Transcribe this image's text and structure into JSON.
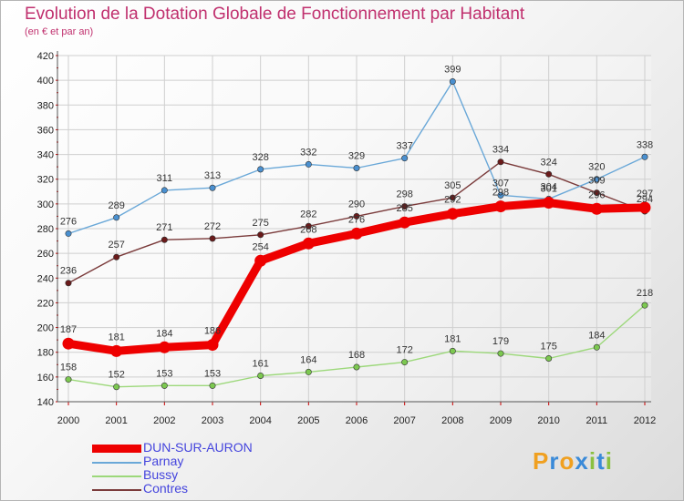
{
  "chart_data": {
    "type": "line",
    "title": "Evolution de la Dotation Globale de Fonctionnement par Habitant",
    "subtitle": "(en € et par an)",
    "xlabel": "",
    "ylabel": "",
    "categories": [
      "2000",
      "2001",
      "2002",
      "2003",
      "2004",
      "2005",
      "2006",
      "2007",
      "2008",
      "2009",
      "2010",
      "2011",
      "2012"
    ],
    "ylim": [
      140,
      420
    ],
    "yticks": [
      140,
      160,
      180,
      200,
      220,
      240,
      260,
      280,
      300,
      320,
      340,
      360,
      380,
      400,
      420
    ],
    "grid": true,
    "legend_position": "bottom-left",
    "series": [
      {
        "name": "DUN-SUR-AURON",
        "color": "#ee0000",
        "point_color": "#ee0000",
        "values": [
          187,
          181,
          184,
          186,
          254,
          268,
          276,
          285,
          292,
          298,
          301,
          296,
          297
        ]
      },
      {
        "name": "Parnay",
        "color": "#6aa8d8",
        "point_color": "#4a90d0",
        "values": [
          276,
          289,
          311,
          313,
          328,
          332,
          329,
          337,
          399,
          307,
          304,
          320,
          338
        ]
      },
      {
        "name": "Bussy",
        "color": "#9cd87a",
        "point_color": "#7cc850",
        "values": [
          158,
          152,
          153,
          153,
          161,
          164,
          168,
          172,
          181,
          179,
          175,
          184,
          218
        ]
      },
      {
        "name": "Contres",
        "color": "#7a3a3a",
        "point_color": "#6a1a1a",
        "values": [
          236,
          257,
          271,
          272,
          275,
          282,
          290,
          298,
          305,
          334,
          324,
          309,
          294
        ]
      }
    ]
  },
  "logo": {
    "text": "Proxiti",
    "letters": [
      "P",
      "r",
      "o",
      "x",
      "i",
      "t",
      "i"
    ],
    "colors": [
      "#f0a020",
      "#3a8ad8",
      "#f0a020",
      "#3a8ad8",
      "#8ac040",
      "#3a8ad8",
      "#8ac040"
    ]
  }
}
